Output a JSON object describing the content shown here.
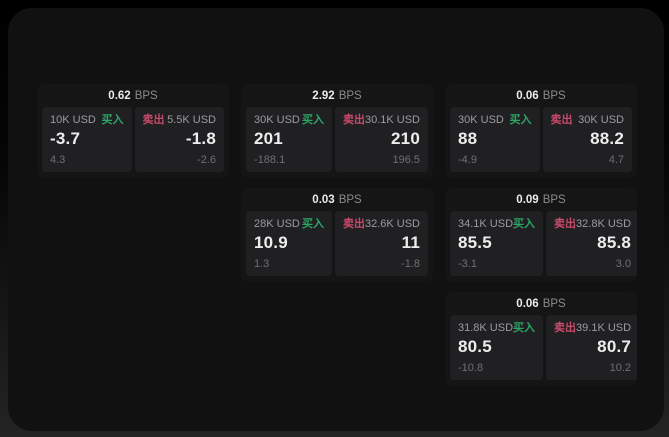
{
  "labels": {
    "bps_unit": "BPS",
    "buy": "买入",
    "sell": "卖出"
  },
  "colors": {
    "buy_green": "#2ca565",
    "sell_red": "#c64a6a",
    "window_bg": "#111112",
    "card_bg": "#151516",
    "panel_bg": "#202022"
  },
  "cards": [
    {
      "bps": "0.62",
      "buy": {
        "amount": "10K USD",
        "price": "-3.7",
        "sub": "4.3"
      },
      "sell": {
        "amount": "5.5K USD",
        "price": "-1.8",
        "sub": "-2.6"
      }
    },
    {
      "bps": "2.92",
      "buy": {
        "amount": "30K USD",
        "price": "201",
        "sub": "-188.1"
      },
      "sell": {
        "amount": "30.1K USD",
        "price": "210",
        "sub": "196.5"
      }
    },
    {
      "bps": "0.06",
      "buy": {
        "amount": "30K USD",
        "price": "88",
        "sub": "-4.9"
      },
      "sell": {
        "amount": "30K USD",
        "price": "88.2",
        "sub": "4.7"
      }
    },
    {
      "bps": "0.03",
      "buy": {
        "amount": "28K USD",
        "price": "10.9",
        "sub": "1.3"
      },
      "sell": {
        "amount": "32.6K USD",
        "price": "11",
        "sub": "-1.8"
      }
    },
    {
      "bps": "0.09",
      "buy": {
        "amount": "34.1K USD",
        "price": "85.5",
        "sub": "-3.1"
      },
      "sell": {
        "amount": "32.8K USD",
        "price": "85.8",
        "sub": "3.0"
      }
    },
    {
      "bps": "0.06",
      "buy": {
        "amount": "31.8K USD",
        "price": "80.5",
        "sub": "-10.8"
      },
      "sell": {
        "amount": "39.1K USD",
        "price": "80.7",
        "sub": "10.2"
      }
    }
  ]
}
